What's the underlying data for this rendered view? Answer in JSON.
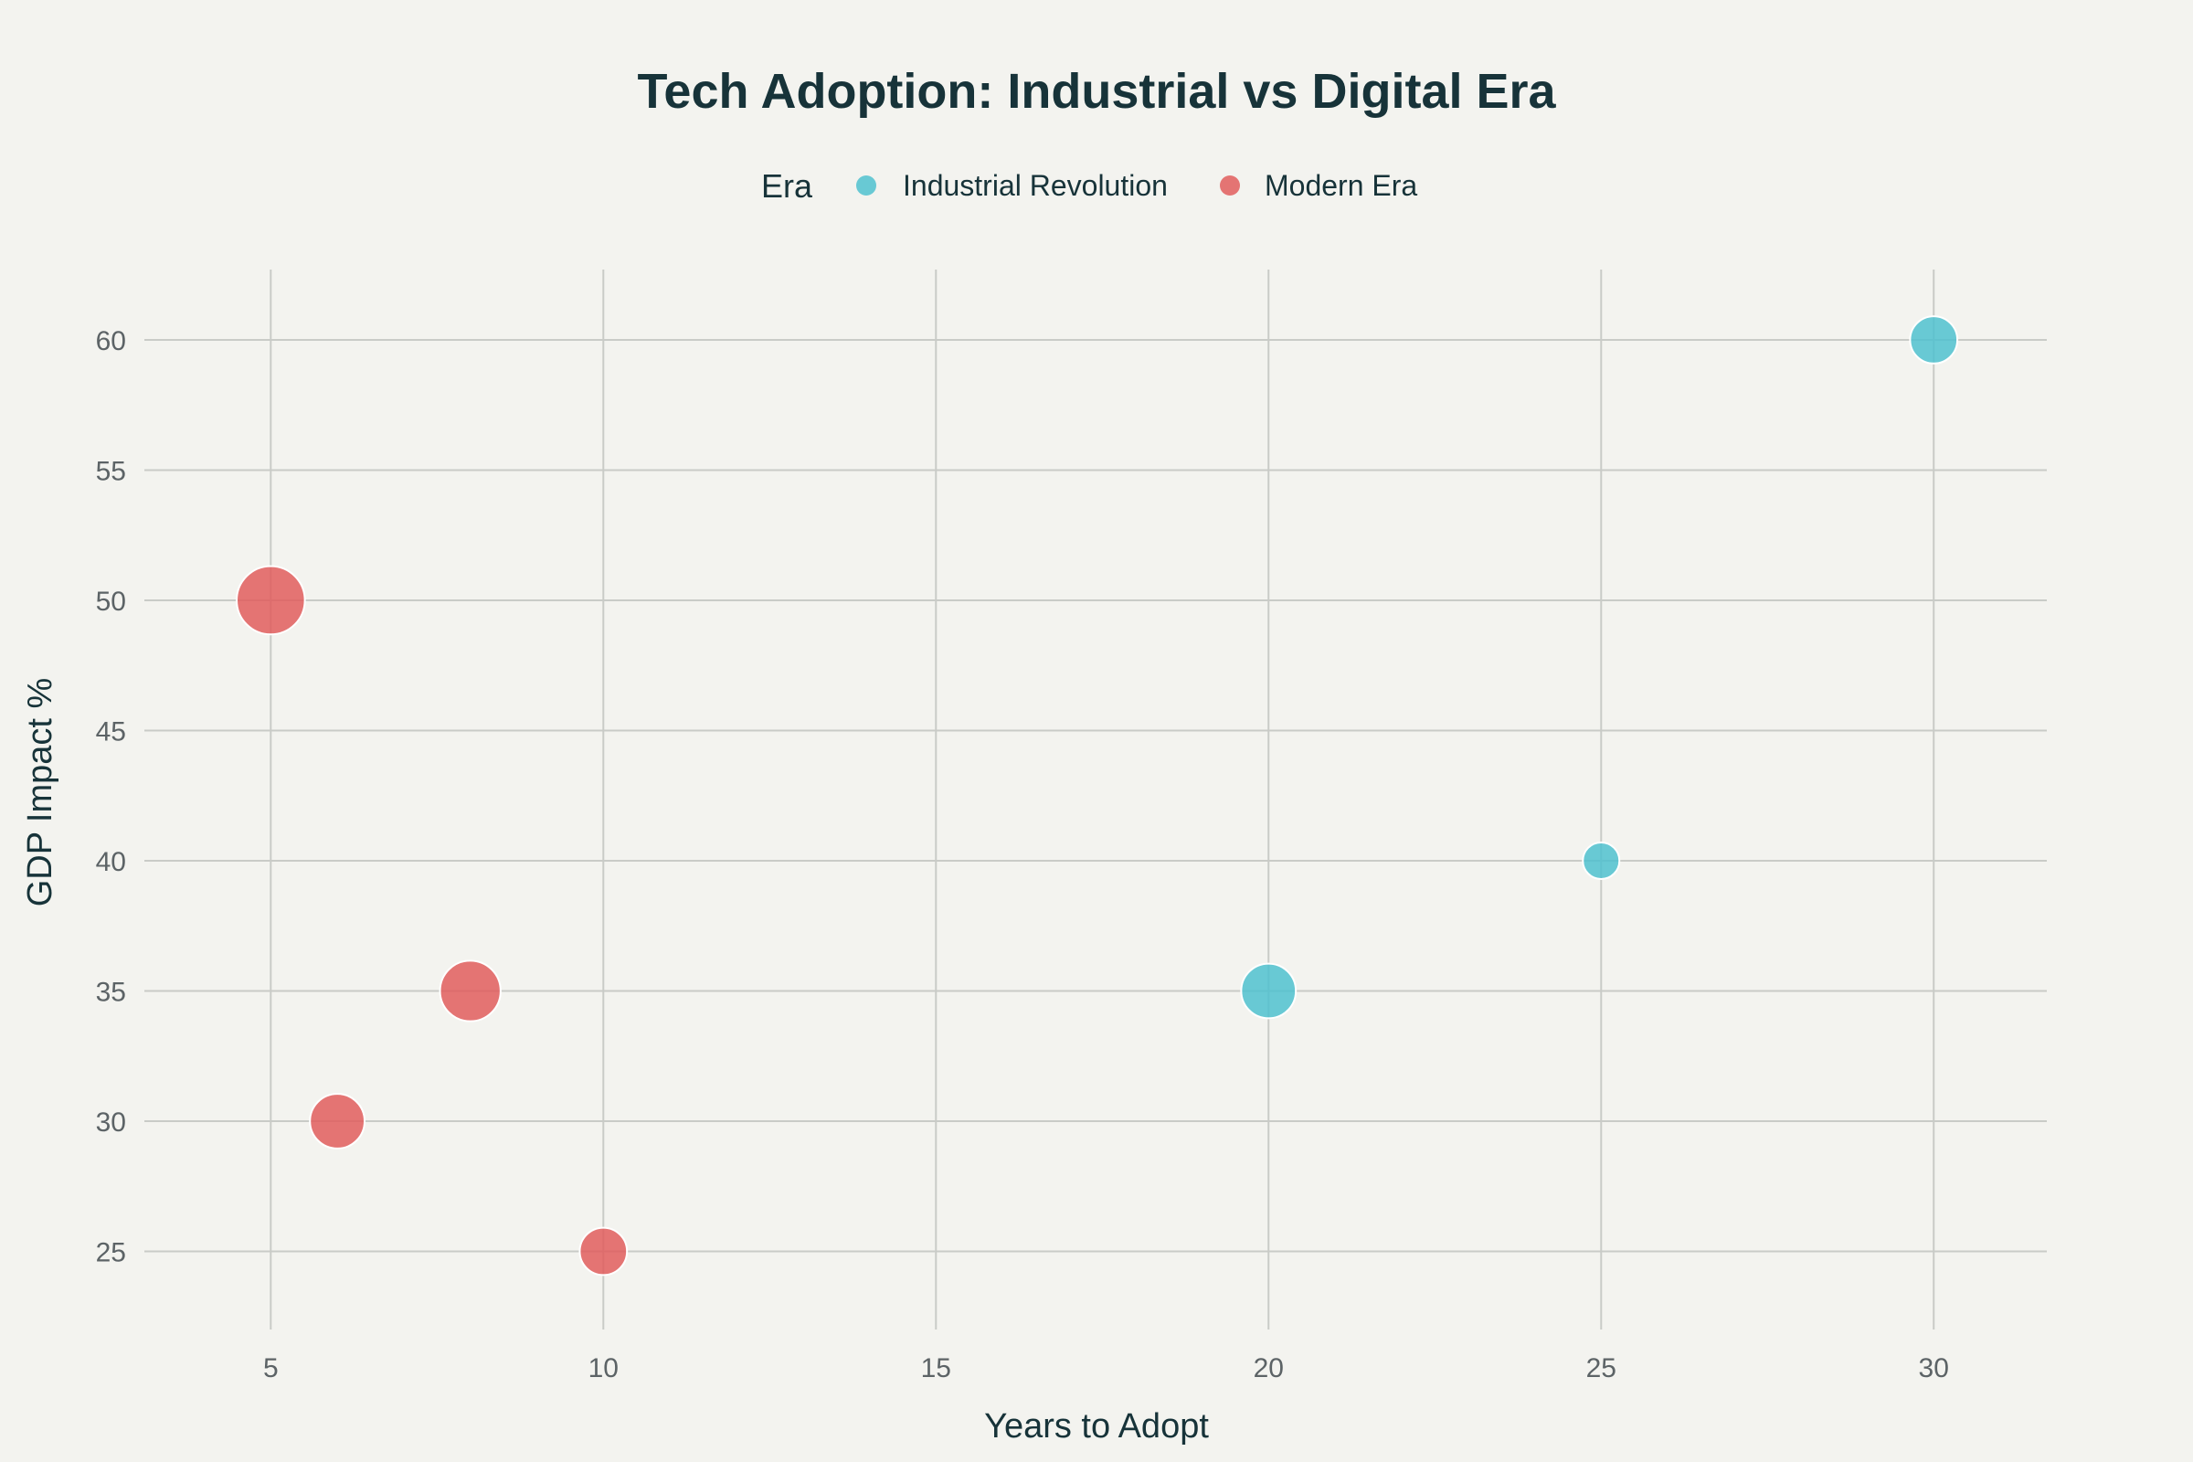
{
  "chart_data": {
    "type": "scatter",
    "title": "Tech Adoption: Industrial vs Digital Era",
    "xlabel": "Years to Adopt",
    "ylabel": "GDP Impact %",
    "xlim": [
      3.1,
      31.7
    ],
    "ylim": [
      22,
      62.7
    ],
    "xticks": [
      5,
      10,
      15,
      20,
      25,
      30
    ],
    "yticks": [
      25,
      30,
      35,
      40,
      45,
      50,
      55,
      60
    ],
    "grid": true,
    "legend": {
      "title": "Era",
      "placement": "top-center"
    },
    "series": [
      {
        "name": "Industrial Revolution",
        "color": "#4fc1cf",
        "points": [
          {
            "x": 30,
            "y": 60,
            "size": 3
          },
          {
            "x": 25,
            "y": 40,
            "size": 1
          },
          {
            "x": 20,
            "y": 35,
            "size": 5
          }
        ]
      },
      {
        "name": "Modern Era",
        "color": "#e05d5d",
        "points": [
          {
            "x": 5,
            "y": 50,
            "size": 10
          },
          {
            "x": 8,
            "y": 35,
            "size": 7
          },
          {
            "x": 6,
            "y": 30,
            "size": 5
          },
          {
            "x": 10,
            "y": 25,
            "size": 3
          }
        ]
      }
    ]
  }
}
